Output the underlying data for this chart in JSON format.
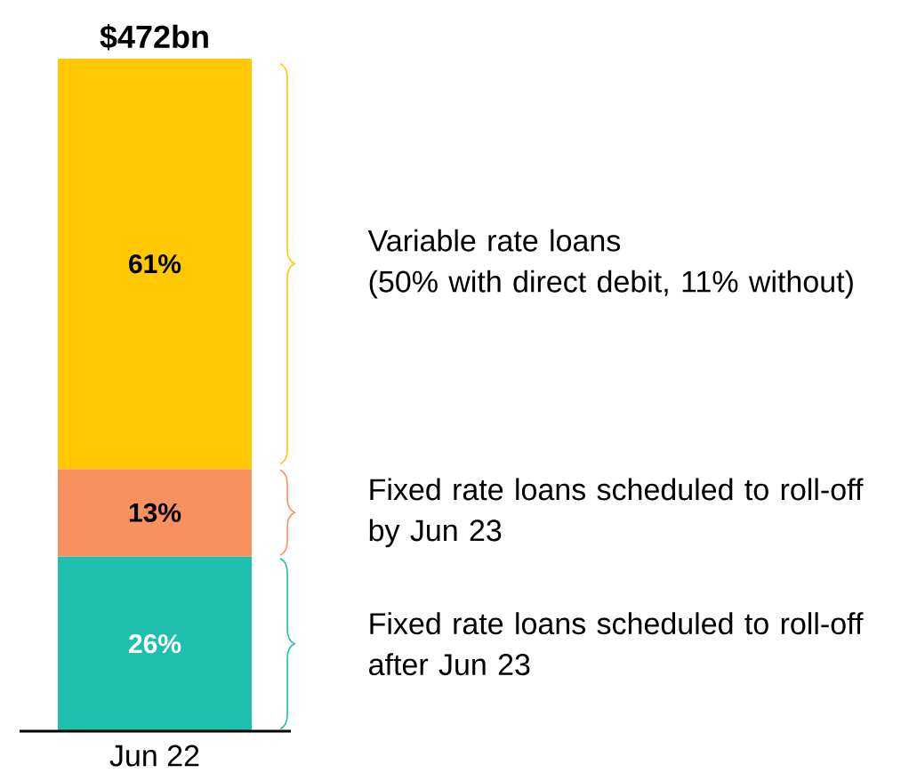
{
  "chart_data": {
    "type": "bar",
    "stacked": true,
    "categories": [
      "Jun 22"
    ],
    "series": [
      {
        "name": "Fixed rate loans scheduled to roll-off after Jun 23",
        "color": "#1fbfae",
        "values": [
          26
        ],
        "value_labels": [
          "26%"
        ]
      },
      {
        "name": "Fixed rate loans scheduled to roll-off by Jun 23",
        "color": "#f99060",
        "values": [
          13
        ],
        "value_labels": [
          "13%"
        ]
      },
      {
        "name": "Variable rate loans",
        "color": "#ffc800",
        "values": [
          61
        ],
        "value_labels": [
          "61%"
        ]
      }
    ],
    "annotations": [
      "(50% with direct debit, 11% without)",
      {
        "text": "$472bn",
        "x": "Jun 22",
        "y": 100
      }
    ]
  }
}
